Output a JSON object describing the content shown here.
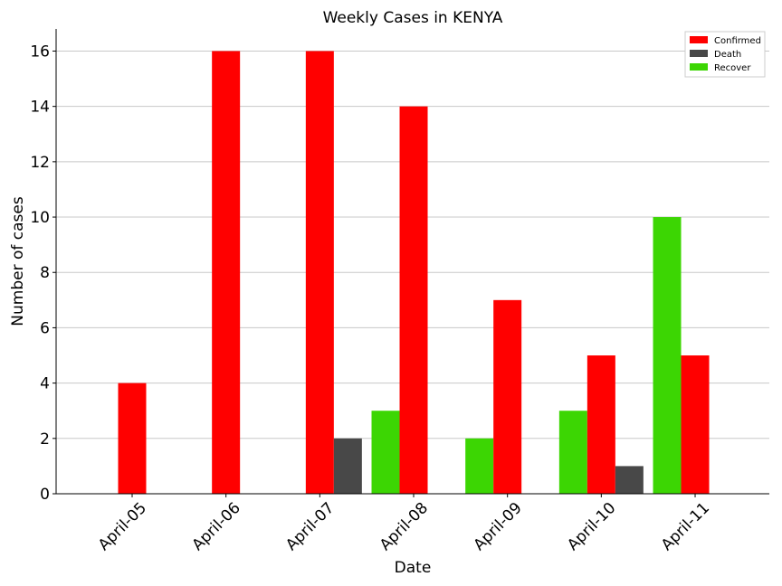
{
  "chart_data": {
    "type": "bar",
    "title": "Weekly Cases in KENYA",
    "xlabel": "Date",
    "ylabel": "Number of cases",
    "categories": [
      "April-05",
      "April-06",
      "April-07",
      "April-08",
      "April-09",
      "April-10",
      "April-11"
    ],
    "series": [
      {
        "name": "Recover",
        "color": "#3cd603",
        "values": [
          0,
          0,
          0,
          3,
          2,
          3,
          10
        ]
      },
      {
        "name": "Confirmed",
        "color": "#ff0000",
        "values": [
          4,
          16,
          16,
          14,
          7,
          5,
          5
        ]
      },
      {
        "name": "Death",
        "color": "#484848",
        "values": [
          0,
          0,
          2,
          0,
          0,
          1,
          0
        ]
      }
    ],
    "legend_order": [
      "Confirmed",
      "Death",
      "Recover"
    ],
    "legend_position": "top-right",
    "ylim": [
      0,
      16.8
    ],
    "yticks": [
      0,
      2,
      4,
      6,
      8,
      10,
      12,
      14,
      16
    ],
    "grid": "horizontal"
  }
}
